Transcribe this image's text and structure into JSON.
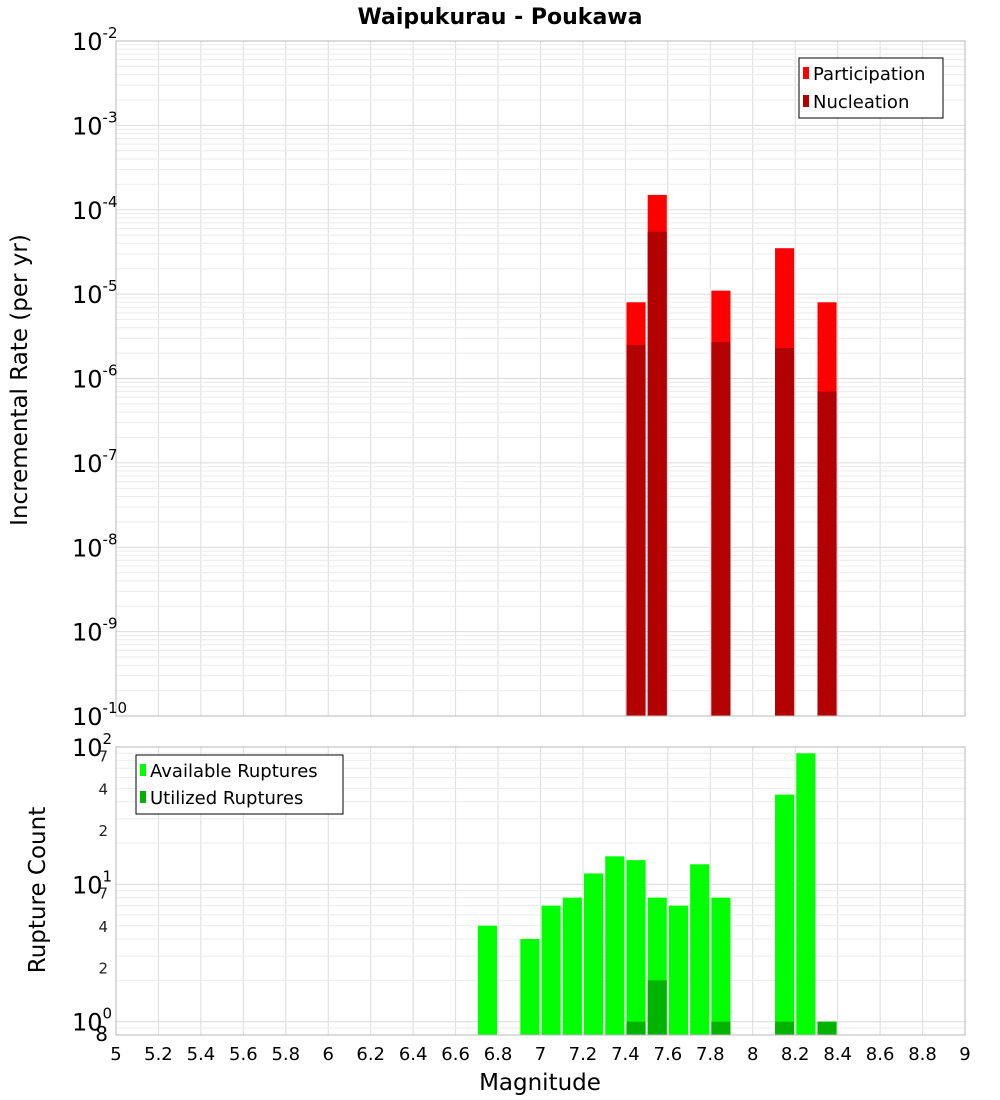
{
  "chart_data": [
    {
      "type": "bar",
      "title": "Waipukurau - Poukawa",
      "ylabel": "Incremental Rate (per yr)",
      "y_scale": "log",
      "ylim": [
        1e-10,
        0.01
      ],
      "xlim": [
        5,
        9
      ],
      "x_ticks": [
        "5",
        "5.2",
        "5.4",
        "5.6",
        "5.8",
        "6",
        "6.2",
        "6.4",
        "6.6",
        "6.8",
        "7",
        "7.2",
        "7.4",
        "7.6",
        "7.8",
        "8",
        "8.2",
        "8.4",
        "8.6",
        "8.8",
        "9"
      ],
      "y_ticks": [
        {
          "base": "10",
          "exp": "-10",
          "value": 1e-10
        },
        {
          "base": "10",
          "exp": "-9",
          "value": 1e-09
        },
        {
          "base": "10",
          "exp": "-8",
          "value": 1e-08
        },
        {
          "base": "10",
          "exp": "-7",
          "value": 1e-07
        },
        {
          "base": "10",
          "exp": "-6",
          "value": 1e-06
        },
        {
          "base": "10",
          "exp": "-5",
          "value": 1e-05
        },
        {
          "base": "10",
          "exp": "-4",
          "value": 0.0001
        },
        {
          "base": "10",
          "exp": "-3",
          "value": 0.001
        },
        {
          "base": "10",
          "exp": "-2",
          "value": 0.01
        }
      ],
      "bar_width": 0.09,
      "legend_position": "top-right",
      "grid": true,
      "series": [
        {
          "name": "Participation",
          "color": "#ff0000",
          "x": [
            7.45,
            7.55,
            7.85,
            8.15,
            8.35
          ],
          "values": [
            8e-06,
            0.00015,
            1.1e-05,
            3.5e-05,
            8e-06
          ]
        },
        {
          "name": "Nucleation",
          "color": "#b30000",
          "x": [
            7.45,
            7.55,
            7.85,
            8.15,
            8.35
          ],
          "values": [
            2.5e-06,
            5.5e-05,
            2.7e-06,
            2.3e-06,
            7e-07
          ]
        }
      ]
    },
    {
      "type": "bar",
      "title": "",
      "xlabel": "Magnitude",
      "ylabel": "Rupture Count",
      "y_scale": "log",
      "ylim": [
        0.8,
        100
      ],
      "xlim": [
        5,
        9
      ],
      "y_ticks": [
        {
          "base": "10",
          "exp": "0",
          "value": 1
        },
        {
          "base": "10",
          "exp": "1",
          "value": 10
        },
        {
          "base": "10",
          "exp": "2",
          "value": 100
        }
      ],
      "y_minor_ticks": [
        {
          "label": "8",
          "value": 0.8
        },
        {
          "label": "2",
          "value": 2
        },
        {
          "label": "4",
          "value": 4
        },
        {
          "label": "7",
          "value": 7
        },
        {
          "label": "2",
          "value": 20
        },
        {
          "label": "4",
          "value": 40
        },
        {
          "label": "7",
          "value": 70
        }
      ],
      "bar_width": 0.09,
      "legend_position": "top-left",
      "grid": true,
      "series": [
        {
          "name": "Available Ruptures",
          "color": "#00ff00",
          "x": [
            6.75,
            6.95,
            7.05,
            7.15,
            7.25,
            7.35,
            7.45,
            7.55,
            7.65,
            7.75,
            7.85,
            8.15,
            8.25,
            8.35
          ],
          "values": [
            5,
            4,
            7,
            8,
            12,
            16,
            15,
            8,
            7,
            14,
            8,
            45,
            90,
            1
          ]
        },
        {
          "name": "Utilized Ruptures",
          "color": "#00b300",
          "x": [
            7.45,
            7.55,
            7.85,
            8.15,
            8.35
          ],
          "values": [
            1,
            2,
            1,
            1,
            1
          ]
        }
      ]
    }
  ]
}
